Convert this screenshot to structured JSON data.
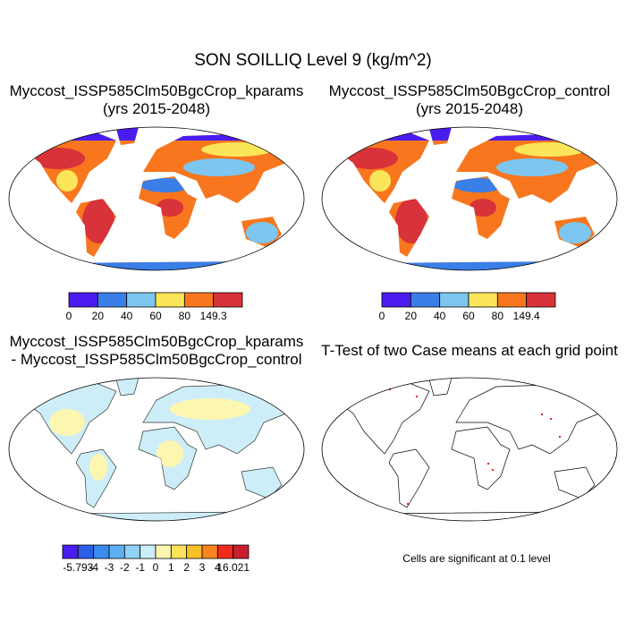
{
  "title": "SON SOILLIQ Level 9 (kg/m^2)",
  "panels": [
    {
      "title": "Myccost_ISSP585Clm50BgcCrop_kparams",
      "subtitle": "(yrs 2015-2048)"
    },
    {
      "title": "Myccost_ISSP585Clm50BgcCrop_control",
      "subtitle": "(yrs 2015-2048)"
    },
    {
      "title": "Myccost_ISSP585Clm50BgcCrop_kparams",
      "subtitle": "- Myccost_ISSP585Clm50BgcCrop_control"
    },
    {
      "title": "T-Test of two Case means at each grid point"
    }
  ],
  "colorbars": [
    {
      "colors": [
        "#4a1cf0",
        "#3a7ee8",
        "#7dc6ef",
        "#fbe65a",
        "#f7761e",
        "#d8323a"
      ],
      "labels": [
        0,
        20,
        40,
        60,
        80,
        149.3
      ]
    },
    {
      "colors": [
        "#4a1cf0",
        "#3a7ee8",
        "#7dc6ef",
        "#fbe65a",
        "#f7761e",
        "#d8323a"
      ],
      "labels": [
        0,
        20,
        40,
        60,
        80,
        149.4
      ]
    },
    {
      "colors": [
        "#4a1cf0",
        "#2d5ee8",
        "#3b8cf0",
        "#5cb0f2",
        "#8fd2f5",
        "#cdeef8",
        "#fdf6b0",
        "#fde25a",
        "#fbbf2a",
        "#f7841e",
        "#ee2a1c",
        "#c8202c"
      ],
      "labels": [
        -5.793,
        -4,
        -3,
        -2,
        -1,
        0,
        1,
        2,
        3,
        4,
        16.021
      ]
    }
  ],
  "note": "Cells are significant at 0.1 level"
}
